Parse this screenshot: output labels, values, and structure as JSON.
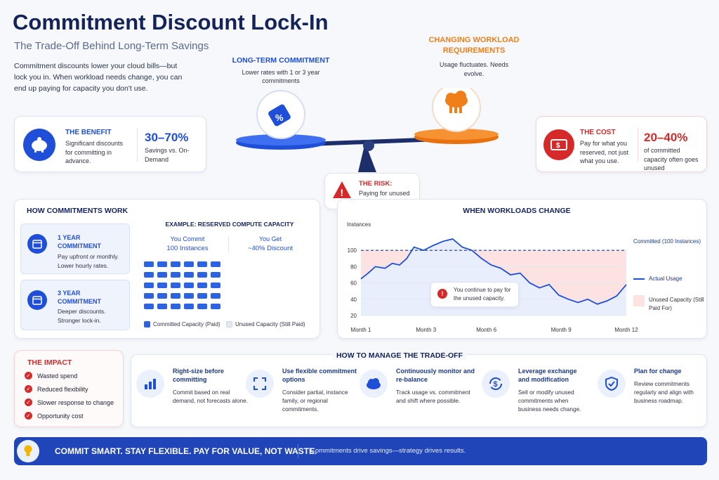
{
  "header": {
    "title": "Commitment Discount Lock-In",
    "subtitle": "The Trade-Off Behind Long-Term Savings",
    "intro": "Commitment discounts lower your cloud bills—but lock you in. When workload needs change, you can end up paying for capacity you don't use."
  },
  "scale": {
    "left_title": "LONG-TERM COMMITMENT",
    "left_desc": "Lower rates with 1 or 3 year commitments",
    "right_title": "CHANGING WORKLOAD REQUIREMENTS",
    "right_desc": "Usage fluctuates. Needs evolve.",
    "risk_title": "THE RISK:",
    "risk_desc": "Paying for unused reserved capacity"
  },
  "benefit": {
    "title": "THE BENEFIT",
    "desc": "Significant discounts for committing in advance.",
    "value": "30–70%",
    "value_desc": "Savings vs. On-Demand"
  },
  "cost": {
    "title": "THE COST",
    "desc": "Pay for what you reserved, not just what you use.",
    "value": "20–40%",
    "value_desc": "of committed capacity often goes unused"
  },
  "how": {
    "title": "HOW COMMITMENTS WORK",
    "one_year": {
      "title": "1 YEAR COMMITMENT",
      "desc": "Pay upfront or monthly. Lower hourly rates."
    },
    "three_year": {
      "title": "3 YEAR COMMITMENT",
      "desc": "Deeper discounts. Stronger lock-in."
    },
    "example_title": "EXAMPLE: RESERVED COMPUTE CAPACITY",
    "commit_label": "You Commit",
    "commit_value": "100 Instances",
    "get_label": "You Get",
    "get_value": "~40% Discount",
    "legend_paid": "Committed Capacity (Paid)",
    "legend_unused": "Unused Capacity (Still Paid)"
  },
  "chart_data": {
    "type": "line",
    "title": "WHEN WORKLOADS CHANGE",
    "ylabel": "Instances",
    "ylim": [
      20,
      120
    ],
    "yticks": [
      20,
      40,
      60,
      80,
      100
    ],
    "xticks": [
      "Month 1",
      "Month 3",
      "Month 6",
      "Month 9",
      "Month 12"
    ],
    "committed": 100,
    "committed_label": "Committed (100 Instances)",
    "series": [
      {
        "name": "Actual Usage",
        "x": [
          1,
          1.3,
          1.6,
          2,
          2.3,
          2.6,
          2.9,
          3.2,
          3.6,
          4,
          4.4,
          4.8,
          5.2,
          5.6,
          6,
          6.4,
          6.8,
          7.2,
          7.6,
          8,
          8.4,
          8.8,
          9.2,
          9.6,
          10,
          10.4,
          10.8,
          11.2,
          11.6,
          12
        ],
        "values": [
          65,
          72,
          80,
          78,
          84,
          82,
          90,
          104,
          100,
          106,
          111,
          114,
          104,
          100,
          90,
          82,
          78,
          70,
          72,
          60,
          54,
          58,
          45,
          40,
          36,
          40,
          34,
          38,
          44,
          58
        ]
      }
    ],
    "unused_label": "Unused Capacity (Still Paid For)",
    "callout": "You continue to pay for the unused capacity."
  },
  "impact": {
    "title": "THE IMPACT",
    "items": [
      "Wasted spend",
      "Reduced flexibility",
      "Slower response to change",
      "Opportunity cost"
    ]
  },
  "manage": {
    "title": "HOW TO MANAGE THE TRADE-OFF",
    "items": [
      {
        "title": "Right-size before committing",
        "desc": "Commit based on real demand, not forecasts alone."
      },
      {
        "title": "Use flexible commitment options",
        "desc": "Consider partial, instance family, or regional commitments."
      },
      {
        "title": "Continuously monitor and re-balance",
        "desc": "Track usage vs. commitment and shift where possible."
      },
      {
        "title": "Leverage exchange and modification",
        "desc": "Sell or modify unused commitments when business needs change."
      },
      {
        "title": "Plan for change",
        "desc": "Review commitments regularly and align with business roadmap."
      }
    ]
  },
  "footer": {
    "slogan": "COMMIT SMART. STAY FLEXIBLE. PAY FOR VALUE, NOT WASTE.",
    "tagline": "Commitments drive savings—strategy drives results."
  }
}
